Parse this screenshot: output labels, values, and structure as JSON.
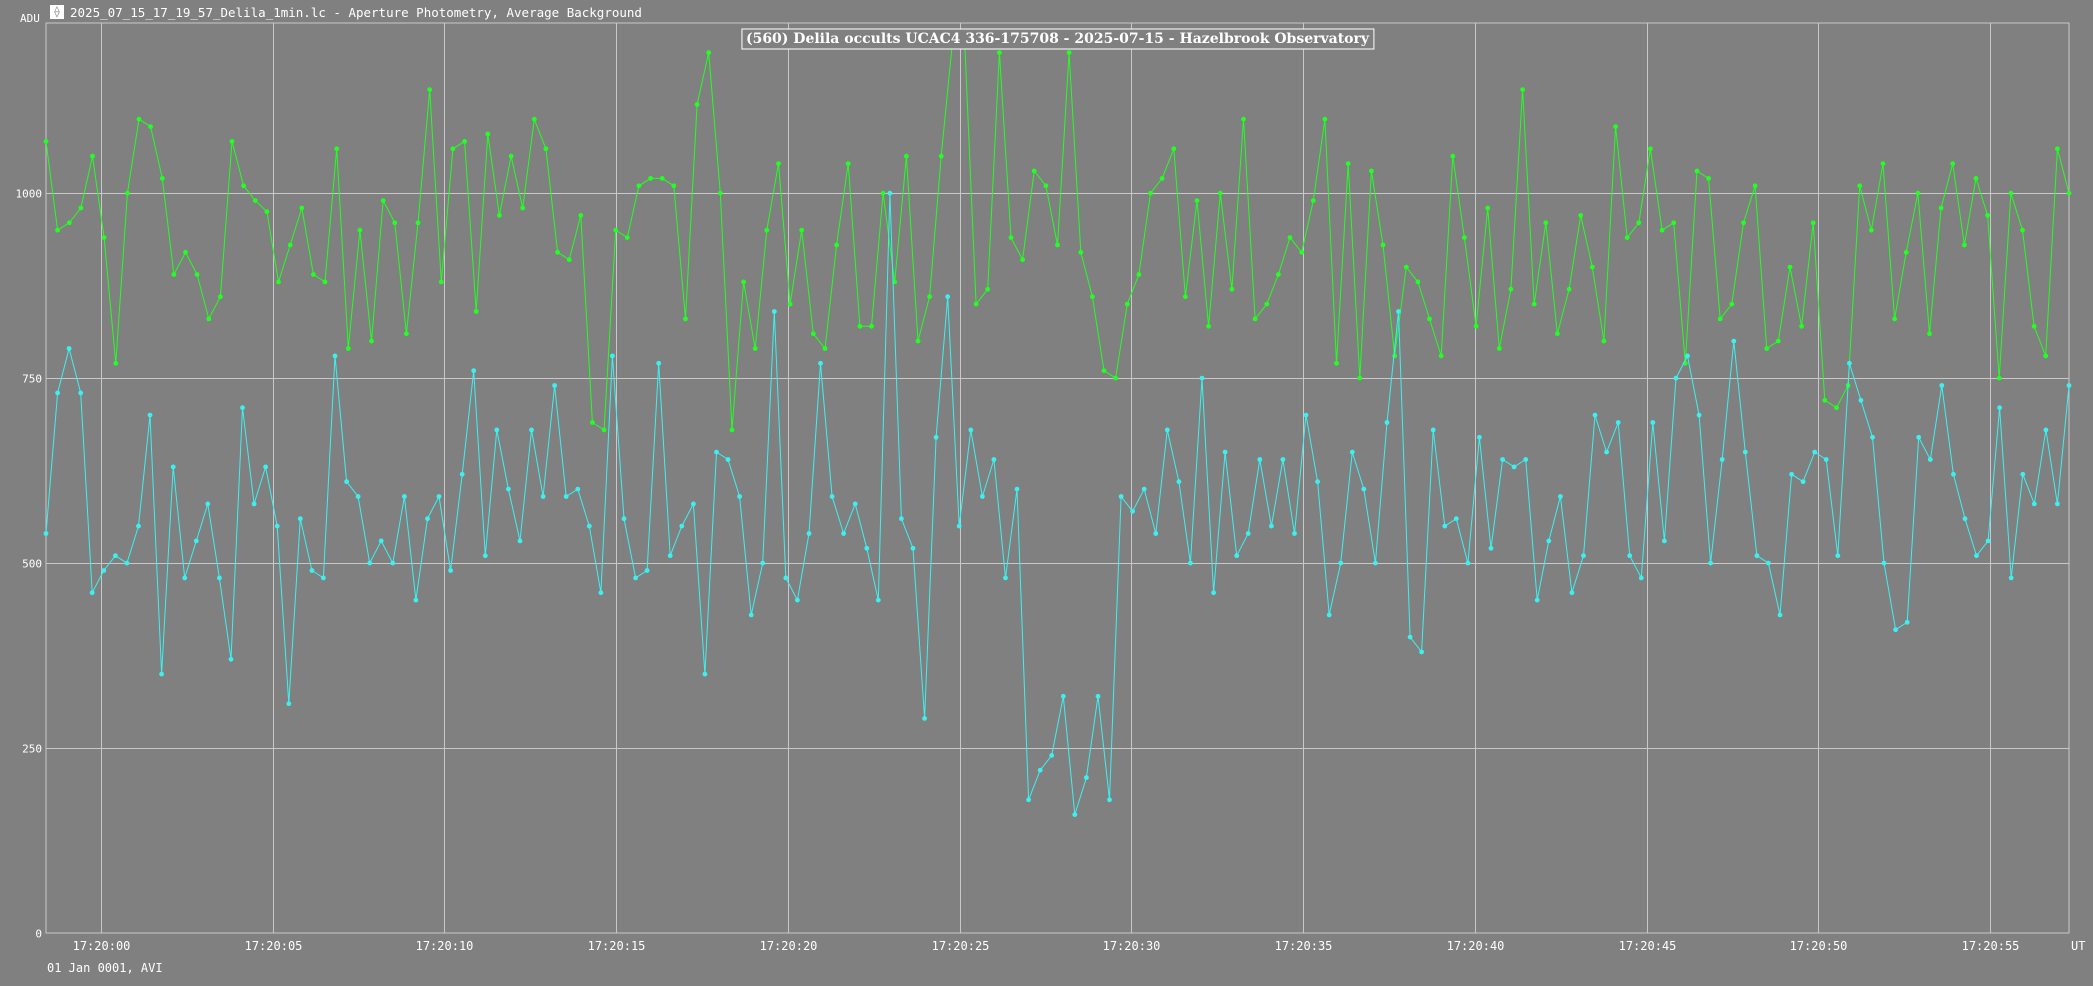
{
  "window": {
    "title": "2025_07_15_17_19_57_Delila_1min.lc - Aperture Photometry, Average Background",
    "icon": "app-logo-icon"
  },
  "footer": {
    "date_label": "01 Jan 0001, AVI"
  },
  "colors": {
    "background": "#808080",
    "grid": "#c8c8c8",
    "target": "#3df0f0",
    "comparison": "#22ff22",
    "text": "#ffffff"
  },
  "chart_data": {
    "type": "line",
    "title": "(560) Delila occults UCAC4 336-175708 - 2025-07-15 - Hazelbrook Observatory",
    "ylabel": "ADU",
    "xlabel": "UT",
    "ylim": [
      0,
      1230
    ],
    "xlim": [
      "17:19:58.4",
      "17:20:57.3"
    ],
    "yticks": [
      0,
      250,
      500,
      750,
      1000
    ],
    "xticks": [
      "17:20:00",
      "17:20:05",
      "17:20:10",
      "17:20:15",
      "17:20:20",
      "17:20:25",
      "17:20:30",
      "17:20:35",
      "17:20:40",
      "17:20:45",
      "17:20:50",
      "17:20:55"
    ],
    "grid": true,
    "series": [
      {
        "id": "comparison",
        "color": "#22ff22",
        "x_start": "17:19:58.4",
        "x_end": "17:20:57.3",
        "values": [
          1070,
          950,
          960,
          980,
          1050,
          940,
          770,
          1000,
          1100,
          1090,
          1020,
          890,
          920,
          890,
          830,
          860,
          1070,
          1010,
          990,
          975,
          880,
          930,
          980,
          890,
          880,
          1060,
          790,
          950,
          800,
          990,
          960,
          810,
          960,
          1140,
          880,
          1060,
          1070,
          840,
          1080,
          970,
          1050,
          980,
          1100,
          1060,
          920,
          910,
          970,
          690,
          680,
          950,
          940,
          1010,
          1020,
          1020,
          1010,
          830,
          1120,
          1190,
          1000,
          680,
          880,
          790,
          950,
          1040,
          850,
          950,
          810,
          790,
          930,
          1040,
          820,
          820,
          1000,
          880,
          1050,
          800,
          860,
          1050,
          1210,
          1210,
          850,
          870,
          1190,
          940,
          910,
          1030,
          1010,
          930,
          1190,
          920,
          860,
          760,
          750,
          850,
          890,
          1000,
          1020,
          1060,
          860,
          990,
          820,
          1000,
          870,
          1100,
          830,
          850,
          890,
          940,
          920,
          990,
          1100,
          770,
          1040,
          750,
          1030,
          930,
          780,
          900,
          880,
          830,
          780,
          1050,
          940,
          820,
          980,
          790,
          870,
          1140,
          850,
          960,
          810,
          870,
          970,
          900,
          800,
          1090,
          940,
          960,
          1060,
          950,
          960,
          770,
          1030,
          1020,
          830,
          850,
          960,
          1010,
          790,
          800,
          900,
          820,
          960,
          720,
          710,
          740,
          1010,
          950,
          1040,
          830,
          920,
          1000,
          810,
          980,
          1040,
          930,
          1020,
          970,
          750,
          1000,
          950,
          820,
          780,
          1060,
          1000
        ]
      },
      {
        "id": "target",
        "color": "#3df0f0",
        "x_start": "17:19:58.4",
        "x_end": "17:20:57.3",
        "values": [
          540,
          730,
          790,
          730,
          460,
          490,
          510,
          500,
          550,
          700,
          350,
          630,
          480,
          530,
          580,
          480,
          370,
          710,
          580,
          630,
          550,
          310,
          560,
          490,
          480,
          780,
          610,
          590,
          500,
          530,
          500,
          590,
          450,
          560,
          590,
          490,
          620,
          760,
          510,
          680,
          600,
          530,
          680,
          590,
          740,
          590,
          600,
          550,
          460,
          780,
          560,
          480,
          490,
          770,
          510,
          550,
          580,
          350,
          650,
          640,
          590,
          430,
          500,
          840,
          480,
          450,
          540,
          770,
          590,
          540,
          580,
          520,
          450,
          1000,
          560,
          520,
          290,
          670,
          860,
          550,
          680,
          590,
          640,
          480,
          600,
          180,
          220,
          240,
          320,
          160,
          210,
          320,
          180,
          590,
          570,
          600,
          540,
          680,
          610,
          500,
          750,
          460,
          650,
          510,
          540,
          640,
          550,
          640,
          540,
          700,
          610,
          430,
          500,
          650,
          600,
          500,
          690,
          840,
          400,
          380,
          680,
          550,
          560,
          500,
          670,
          520,
          640,
          630,
          640,
          450,
          530,
          590,
          460,
          510,
          700,
          650,
          690,
          510,
          480,
          690,
          530,
          750,
          780,
          700,
          500,
          640,
          800,
          650,
          510,
          500,
          430,
          620,
          610,
          650,
          640,
          510,
          770,
          720,
          670,
          500,
          410,
          420,
          670,
          640,
          740,
          620,
          560,
          510,
          530,
          710,
          480,
          620,
          580,
          680,
          580,
          740
        ]
      }
    ]
  }
}
